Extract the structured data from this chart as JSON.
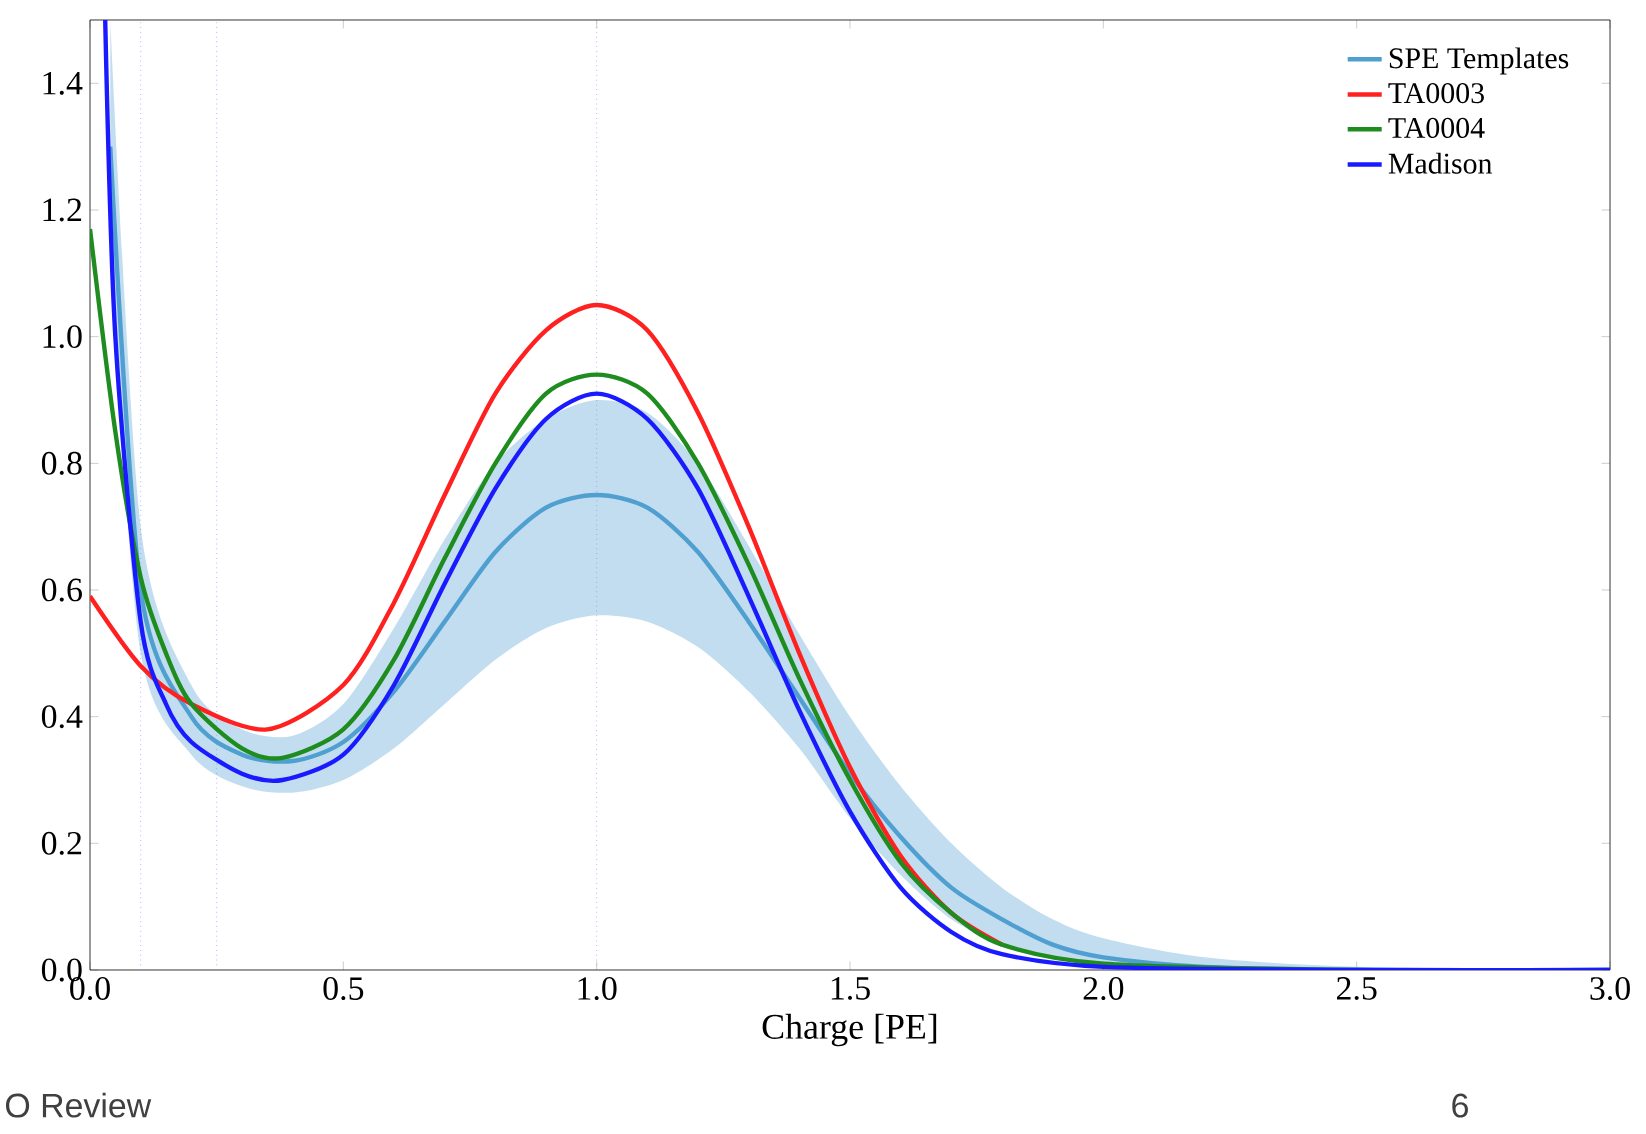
{
  "chart_data": {
    "type": "line",
    "xlabel": "Charge [PE]",
    "xlim": [
      0,
      3
    ],
    "ylim": [
      0,
      1.5
    ],
    "xticks": [
      {
        "value": 0,
        "label": "0.0"
      },
      {
        "value": 0.5,
        "label": "0.5"
      },
      {
        "value": 1,
        "label": "1.0"
      },
      {
        "value": 1.5,
        "label": "1.5"
      },
      {
        "value": 2,
        "label": "2.0"
      },
      {
        "value": 2.5,
        "label": "2.5"
      },
      {
        "value": 3,
        "label": "3.0"
      }
    ],
    "yticks": [
      {
        "value": 0,
        "label": "0.0"
      },
      {
        "value": 0.2,
        "label": "0.2"
      },
      {
        "value": 0.4,
        "label": "0.4"
      },
      {
        "value": 0.6,
        "label": "0.6"
      },
      {
        "value": 0.8,
        "label": "0.8"
      },
      {
        "value": 1,
        "label": "1.0"
      },
      {
        "value": 1.2,
        "label": "1.2"
      },
      {
        "value": 1.4,
        "label": "1.4"
      }
    ],
    "series": [
      {
        "name": "SPE Templates",
        "color": "#4f9fd0",
        "x": [
          0.04,
          0.1,
          0.2,
          0.3,
          0.4,
          0.5,
          0.6,
          0.7,
          0.8,
          0.9,
          1.0,
          1.1,
          1.2,
          1.3,
          1.4,
          1.5,
          1.6,
          1.7,
          1.8,
          1.9,
          2.0,
          2.2,
          2.5,
          3.0
        ],
        "values": [
          1.3,
          0.6,
          0.4,
          0.34,
          0.33,
          0.36,
          0.44,
          0.55,
          0.66,
          0.73,
          0.75,
          0.73,
          0.66,
          0.55,
          0.43,
          0.31,
          0.21,
          0.13,
          0.08,
          0.04,
          0.02,
          0.005,
          0,
          0
        ],
        "lower": [
          1.1,
          0.5,
          0.34,
          0.29,
          0.28,
          0.3,
          0.35,
          0.42,
          0.49,
          0.54,
          0.56,
          0.55,
          0.51,
          0.44,
          0.35,
          0.24,
          0.15,
          0.08,
          0.04,
          0.02,
          0.01,
          0,
          0,
          0
        ],
        "upper": [
          1.5,
          0.7,
          0.45,
          0.38,
          0.37,
          0.42,
          0.54,
          0.68,
          0.8,
          0.87,
          0.9,
          0.88,
          0.8,
          0.67,
          0.53,
          0.4,
          0.29,
          0.2,
          0.13,
          0.08,
          0.05,
          0.02,
          0.005,
          0
        ]
      },
      {
        "name": "TA0003",
        "color": "#ff2020",
        "x": [
          0,
          0.1,
          0.2,
          0.35,
          0.5,
          0.6,
          0.7,
          0.8,
          0.9,
          1.0,
          1.1,
          1.2,
          1.3,
          1.4,
          1.5,
          1.6,
          1.7,
          1.8
        ],
        "values": [
          0.59,
          0.48,
          0.42,
          0.38,
          0.45,
          0.58,
          0.75,
          0.91,
          1.01,
          1.05,
          1.01,
          0.88,
          0.7,
          0.5,
          0.32,
          0.18,
          0.09,
          0.04
        ]
      },
      {
        "name": "TA0004",
        "color": "#1e8c1e",
        "x": [
          0,
          0.05,
          0.1,
          0.15,
          0.2,
          0.3,
          0.38,
          0.5,
          0.6,
          0.7,
          0.8,
          0.9,
          1.0,
          1.1,
          1.2,
          1.3,
          1.4,
          1.5,
          1.6,
          1.7,
          1.8,
          2.0,
          2.5,
          3.0
        ],
        "values": [
          1.17,
          0.85,
          0.62,
          0.5,
          0.42,
          0.35,
          0.335,
          0.38,
          0.49,
          0.65,
          0.8,
          0.91,
          0.94,
          0.91,
          0.8,
          0.64,
          0.46,
          0.3,
          0.17,
          0.09,
          0.04,
          0.01,
          0,
          0
        ]
      },
      {
        "name": "Madison",
        "color": "#1a1aff",
        "x": [
          0.03,
          0.05,
          0.1,
          0.15,
          0.2,
          0.3,
          0.38,
          0.5,
          0.6,
          0.7,
          0.8,
          0.9,
          1.0,
          1.1,
          1.2,
          1.3,
          1.4,
          1.5,
          1.6,
          1.7,
          1.8,
          2.0,
          2.5,
          3.0
        ],
        "values": [
          1.5,
          1.0,
          0.55,
          0.42,
          0.36,
          0.31,
          0.3,
          0.34,
          0.45,
          0.61,
          0.76,
          0.87,
          0.91,
          0.87,
          0.76,
          0.59,
          0.41,
          0.25,
          0.13,
          0.06,
          0.025,
          0.005,
          0,
          0
        ]
      }
    ],
    "ref_lines": [
      {
        "axis": "x",
        "value": 0.1,
        "color": "#8c8cff",
        "line_style": "dotted"
      },
      {
        "axis": "x",
        "value": 0.25,
        "color": "#8c8cff",
        "line_style": "dotted"
      },
      {
        "axis": "x",
        "value": 1.0,
        "color": "#8c8cff",
        "line_style": "dotted"
      }
    ],
    "legend": "top right",
    "annotations": [
      "O Review",
      "6"
    ]
  }
}
